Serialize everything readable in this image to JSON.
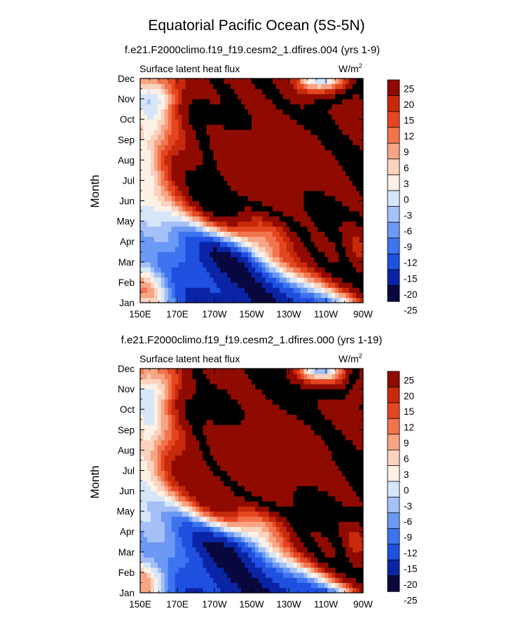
{
  "figure_title": "Equatorial Pacific Ocean (5S-5N)",
  "colors": {
    "levels": [
      "#08083f",
      "#0b24a6",
      "#1f50e0",
      "#3d74ef",
      "#6c99f4",
      "#a4c0f6",
      "#d6e6f8",
      "#fdf1e6",
      "#fbd2bd",
      "#f7a585",
      "#f2744d",
      "#e44620",
      "#c72a0a",
      "#8f0b00"
    ]
  },
  "chart_data": [
    {
      "type": "heatmap",
      "title": "f.e21.F2000climo.f19_f19.cesm2_1.dfires.004 (yrs 1-9)",
      "left_label": "Surface latent heat flux",
      "units": "W/m",
      "units_superscript": "2",
      "ylabel": "Month",
      "x_ticks": [
        "150E",
        "170E",
        "170W",
        "150W",
        "130W",
        "110W",
        "90W"
      ],
      "x_range": [
        150,
        270
      ],
      "y_ticks": [
        "Jan",
        "Feb",
        "Mar",
        "Apr",
        "May",
        "Jun",
        "Jul",
        "Aug",
        "Sep",
        "Oct",
        "Nov",
        "Dec"
      ],
      "colorbar_levels": [
        "25",
        "20",
        "15",
        "12",
        "9",
        "6",
        "3",
        "0",
        "-3",
        "-6",
        "-9",
        "-12",
        "-15",
        "-20",
        "-25"
      ],
      "variant": 0
    },
    {
      "type": "heatmap",
      "title": "f.e21.F2000climo.f19_f19.cesm2_1.dfires.000 (yrs 1-19)",
      "left_label": "Surface latent heat flux",
      "units": "W/m",
      "units_superscript": "2",
      "ylabel": "Month",
      "x_ticks": [
        "150E",
        "170E",
        "170W",
        "150W",
        "130W",
        "110W",
        "90W"
      ],
      "x_range": [
        150,
        270
      ],
      "y_ticks": [
        "Jan",
        "Feb",
        "Mar",
        "Apr",
        "May",
        "Jun",
        "Jul",
        "Aug",
        "Sep",
        "Oct",
        "Nov",
        "Dec"
      ],
      "colorbar_levels": [
        "25",
        "20",
        "15",
        "12",
        "9",
        "6",
        "3",
        "0",
        "-3",
        "-6",
        "-9",
        "-12",
        "-15",
        "-20",
        "-25"
      ],
      "variant": 1
    }
  ]
}
